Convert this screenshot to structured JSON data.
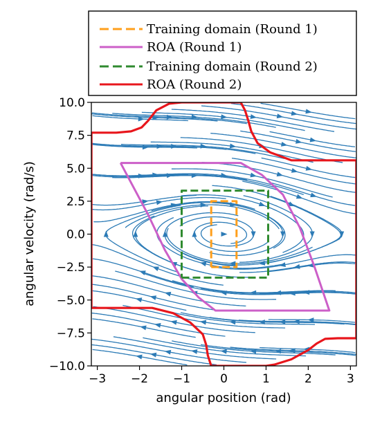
{
  "chart_data": {
    "type": "line",
    "title": "",
    "xlabel": "angular position (rad)",
    "ylabel": "angular velocity (rad/s)",
    "xlim": [
      -3.14159,
      3.14159
    ],
    "ylim": [
      -10,
      10
    ],
    "xticks": [
      -3,
      -2,
      -1,
      0,
      1,
      2,
      3
    ],
    "xtick_labels": [
      "−3",
      "−2",
      "−1",
      "0",
      "1",
      "2",
      "3"
    ],
    "yticks": [
      -10,
      -7.5,
      -5,
      -2.5,
      0,
      2.5,
      5,
      7.5,
      10
    ],
    "ytick_labels": [
      "−10.0",
      "−7.5",
      "−5.0",
      "−2.5",
      "0.0",
      "2.5",
      "5.0",
      "7.5",
      "10.0"
    ],
    "grid": false,
    "legend": "top-outside",
    "background": "streamplot of pendulum phase portrait",
    "streamline_color": "#2c7bb6",
    "series": [
      {
        "name": "Training domain (Round 1)",
        "style": "dashed",
        "color": "#ff9f1c",
        "x": [
          -0.3,
          0.3,
          0.3,
          -0.3,
          -0.3
        ],
        "y": [
          -2.5,
          -2.5,
          2.5,
          2.5,
          -2.5
        ]
      },
      {
        "name": "ROA (Round 1)",
        "style": "solid",
        "color": "#cc5fc8",
        "x": [
          -2.45,
          0.4,
          0.9,
          1.4,
          1.8,
          2.15,
          2.5,
          -0.2,
          -0.6,
          -1.0,
          -1.4,
          -1.8,
          -2.45
        ],
        "y": [
          5.4,
          5.4,
          4.5,
          3.0,
          0.5,
          -2.5,
          -5.8,
          -5.8,
          -4.8,
          -3.4,
          -1.2,
          1.5,
          5.4
        ]
      },
      {
        "name": "Training domain (Round 2)",
        "style": "dashed",
        "color": "#2f8a2f",
        "x": [
          -1.0,
          1.05,
          1.05,
          -1.0,
          -1.0
        ],
        "y": [
          -3.3,
          -3.3,
          3.3,
          3.3,
          -3.3
        ]
      },
      {
        "name": "ROA (Round 2)",
        "style": "solid",
        "color": "#e8161c",
        "segments": [
          {
            "x": [
              -3.14,
              -3.14,
              -2.55,
              -2.2,
              -1.95,
              -1.8,
              -1.6,
              -1.3,
              -1.0,
              0.4,
              0.5,
              0.58,
              0.65,
              0.8,
              1.1,
              1.6,
              3.14,
              3.14,
              2.7,
              2.4,
              2.2,
              2.0,
              1.6,
              1.2,
              1.0,
              -0.3,
              -0.38,
              -0.42,
              -0.5,
              -0.8,
              -1.2,
              -1.7,
              -3.14
            ],
            "y": [
              -5.6,
              7.7,
              7.7,
              7.8,
              8.1,
              8.6,
              9.4,
              9.9,
              10.0,
              10.0,
              9.4,
              8.6,
              7.8,
              6.9,
              6.2,
              5.6,
              5.6,
              -7.9,
              -7.9,
              -7.95,
              -8.3,
              -8.8,
              -9.5,
              -9.9,
              -10.0,
              -10.0,
              -9.2,
              -8.4,
              -7.6,
              -6.7,
              -6.0,
              -5.6,
              -5.6
            ]
          }
        ]
      }
    ]
  }
}
